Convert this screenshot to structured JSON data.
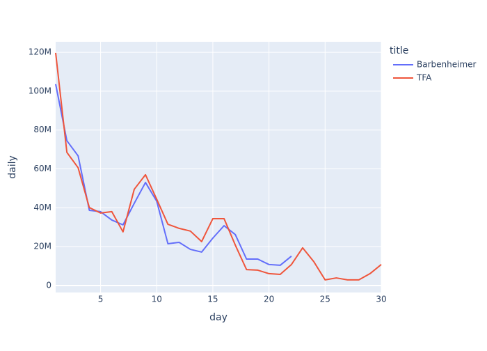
{
  "chart_data": {
    "type": "line",
    "x_label": "day",
    "y_label": "daily",
    "legend_title": "title",
    "x": [
      1,
      2,
      3,
      4,
      5,
      6,
      7,
      8,
      9,
      10,
      11,
      12,
      13,
      14,
      15,
      16,
      17,
      18,
      19,
      20,
      21,
      22,
      23,
      24,
      25,
      26,
      27,
      28,
      29,
      30
    ],
    "series": [
      {
        "name": "Barbenheimer",
        "color": "#636efa",
        "values": [
          103600000,
          74500000,
          66700000,
          38700000,
          38000000,
          33700000,
          31200000,
          42300000,
          53000000,
          43400000,
          21500000,
          22200000,
          18600000,
          17200000,
          24400000,
          30800000,
          26200000,
          13600000,
          13600000,
          10800000,
          10400000,
          15100000,
          null,
          null,
          null,
          null,
          null,
          null,
          null,
          null
        ]
      },
      {
        "name": "TFA",
        "color": "#ef553b",
        "values": [
          119700000,
          68500000,
          60600000,
          40100000,
          37300000,
          38000000,
          27600000,
          49500000,
          57000000,
          44400000,
          31500000,
          29400000,
          28000000,
          22600000,
          34400000,
          34400000,
          20800000,
          8200000,
          7900000,
          6100000,
          5700000,
          10800000,
          19400000,
          12200000,
          2900000,
          3900000,
          2900000,
          2900000,
          6100000,
          10800000
        ]
      }
    ],
    "xlim": [
      1,
      30
    ],
    "xticks": [
      5,
      10,
      15,
      20,
      25,
      30
    ],
    "ylim": [
      -3600000,
      125400000
    ],
    "yticks": [
      0,
      {
        "value": 20000000,
        "label": "20M"
      },
      {
        "value": 40000000,
        "label": "40M"
      },
      {
        "value": 60000000,
        "label": "60M"
      },
      {
        "value": 80000000,
        "label": "80M"
      },
      {
        "value": 100000000,
        "label": "100M"
      },
      {
        "value": 120000000,
        "label": "120M"
      }
    ],
    "grid": true,
    "legend_position": "right"
  }
}
